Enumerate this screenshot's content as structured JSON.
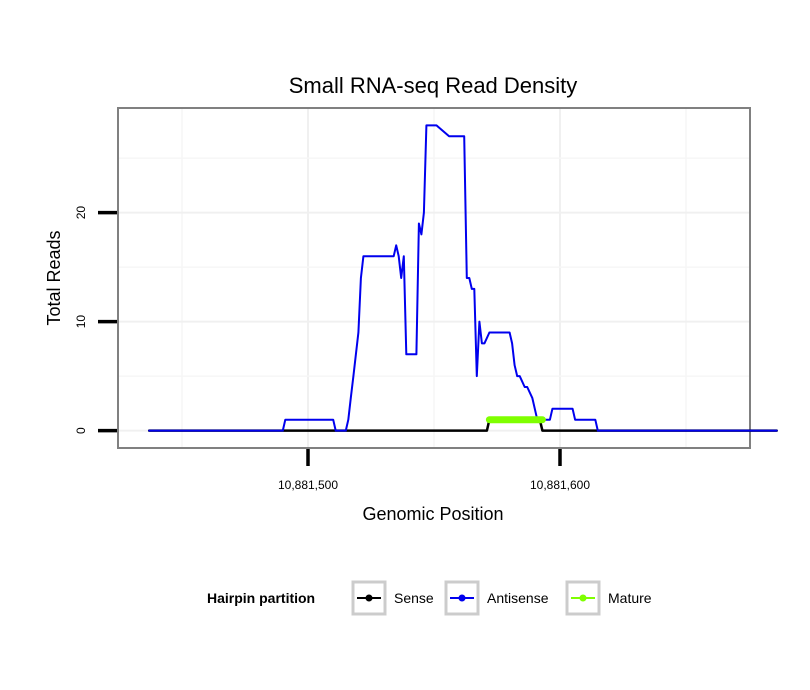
{
  "chart_data": {
    "type": "line",
    "title": "Small RNA-seq Read Density",
    "xlabel": "Genomic Position",
    "ylabel": "Total Reads",
    "xlim": [
      10881425,
      10881675
    ],
    "ylim": [
      -1.5,
      29.5
    ],
    "x_ticks": [
      10881500,
      10881600
    ],
    "x_tick_labels": [
      "10,881,500",
      "10,881,600"
    ],
    "y_ticks": [
      0,
      10,
      20
    ],
    "y_tick_labels": [
      "0",
      "10",
      "20"
    ],
    "grid": true,
    "legend": {
      "title": "Hairpin partition",
      "position": "bottom",
      "entries": [
        "Sense",
        "Antisense",
        "Mature"
      ]
    },
    "series": [
      {
        "name": "Sense",
        "color": "#000000",
        "x": [
          10881437,
          10881571,
          10881572,
          10881592,
          10881593,
          10881686
        ],
        "y": [
          0,
          0,
          1,
          1,
          0,
          0
        ]
      },
      {
        "name": "Antisense",
        "color": "#0000ee",
        "x": [
          10881437,
          10881490,
          10881491,
          10881510,
          10881511,
          10881515,
          10881516,
          10881517,
          10881518,
          10881519,
          10881520,
          10881521,
          10881522,
          10881524,
          10881534,
          10881535,
          10881536,
          10881537,
          10881538,
          10881539,
          10881540,
          10881541,
          10881542,
          10881543,
          10881544,
          10881545,
          10881546,
          10881547,
          10881548,
          10881549,
          10881550,
          10881551,
          10881556,
          10881557,
          10881562,
          10881563,
          10881564,
          10881565,
          10881566,
          10881567,
          10881568,
          10881569,
          10881570,
          10881572,
          10881573,
          10881580,
          10881581,
          10881582,
          10881583,
          10881584,
          10881586,
          10881587,
          10881589,
          10881590,
          10881591,
          10881593,
          10881594,
          10881596,
          10881597,
          10881605,
          10881606,
          10881614,
          10881615,
          10881686
        ],
        "y": [
          0,
          0,
          1,
          1,
          0,
          0,
          1,
          3,
          5,
          7,
          9,
          14,
          16,
          16,
          16,
          17,
          16,
          14,
          16,
          7,
          7,
          7,
          7,
          7,
          19,
          18,
          20,
          28,
          28,
          28,
          28,
          28,
          27,
          27,
          27,
          14,
          14,
          13,
          13,
          5,
          10,
          8,
          8,
          9,
          9,
          9,
          8,
          6,
          5,
          5,
          4,
          4,
          3,
          2,
          1,
          1,
          1,
          1,
          2,
          2,
          1,
          1,
          0,
          0
        ]
      },
      {
        "name": "Mature",
        "color": "#7fff00",
        "x": [
          10881572,
          10881593
        ],
        "y": [
          1,
          1
        ]
      }
    ]
  }
}
